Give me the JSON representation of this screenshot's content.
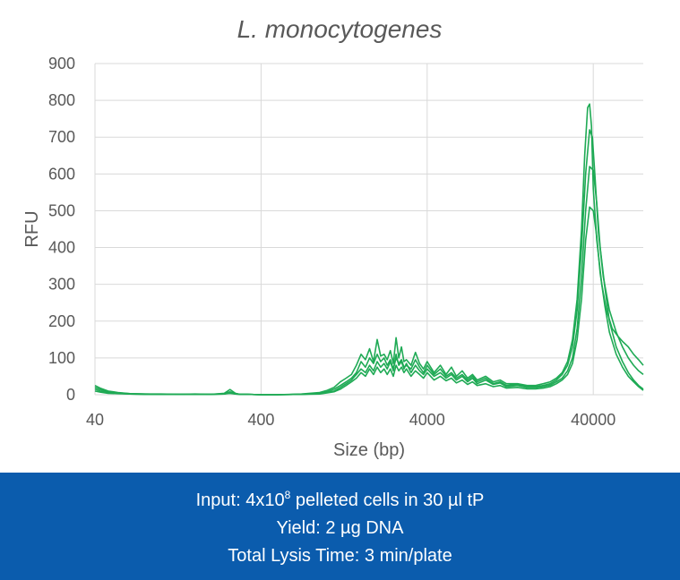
{
  "chart_data": {
    "type": "line",
    "title": "L. monocytogenes",
    "xlabel": "Size (bp)",
    "ylabel": "RFU",
    "x_scale": "log",
    "xlim": [
      40,
      80000
    ],
    "ylim": [
      0,
      900
    ],
    "x_ticks": [
      40,
      400,
      4000,
      40000
    ],
    "x_tick_labels": [
      "40",
      "400",
      "4000",
      "40000"
    ],
    "y_ticks": [
      0,
      100,
      200,
      300,
      400,
      500,
      600,
      700,
      800,
      900
    ],
    "y_tick_labels": [
      "0",
      "100",
      "200",
      "300",
      "400",
      "500",
      "600",
      "700",
      "800",
      "900"
    ],
    "grid": true,
    "legend": "none",
    "line_color": "#1faa55",
    "series": [
      {
        "x": [
          40,
          43,
          48,
          55,
          65,
          80,
          100,
          130,
          160,
          200,
          240,
          260,
          280,
          300,
          330,
          400,
          500,
          700,
          900,
          1000,
          1100,
          1200,
          1300,
          1400,
          1500,
          1600,
          1700,
          1800,
          1900,
          2000,
          2100,
          2200,
          2300,
          2400,
          2500,
          2600,
          2700,
          2800,
          2900,
          3000,
          3200,
          3400,
          3600,
          3800,
          4000,
          4400,
          4800,
          5200,
          5600,
          6000,
          6500,
          7000,
          7500,
          8000,
          9000,
          10000,
          11000,
          12000,
          14000,
          16000,
          18000,
          20000,
          22000,
          24000,
          26000,
          28000,
          30000,
          32000,
          34000,
          35500,
          37000,
          38000,
          39000,
          40000,
          42000,
          45000,
          48000,
          52000,
          56000,
          60000,
          65000,
          70000,
          75000,
          80000
        ],
        "y": [
          25,
          18,
          10,
          6,
          3,
          2,
          2,
          1,
          2,
          1,
          4,
          14,
          4,
          1,
          1,
          0,
          0,
          2,
          6,
          12,
          20,
          35,
          45,
          55,
          80,
          110,
          95,
          125,
          90,
          150,
          105,
          110,
          95,
          120,
          85,
          155,
          100,
          130,
          90,
          95,
          80,
          115,
          85,
          70,
          90,
          60,
          80,
          55,
          75,
          50,
          65,
          45,
          55,
          40,
          50,
          35,
          40,
          30,
          30,
          25,
          25,
          30,
          35,
          45,
          60,
          90,
          150,
          260,
          450,
          650,
          780,
          790,
          730,
          560,
          420,
          300,
          230,
          180,
          160,
          145,
          130,
          110,
          95,
          80
        ]
      },
      {
        "x": [
          40,
          43,
          48,
          55,
          65,
          80,
          100,
          130,
          160,
          200,
          240,
          260,
          280,
          300,
          330,
          400,
          500,
          700,
          900,
          1000,
          1100,
          1200,
          1300,
          1400,
          1500,
          1600,
          1700,
          1800,
          1900,
          2000,
          2100,
          2200,
          2300,
          2400,
          2500,
          2600,
          2700,
          2800,
          2900,
          3000,
          3200,
          3400,
          3600,
          3800,
          4000,
          4400,
          4800,
          5200,
          5600,
          6000,
          6500,
          7000,
          7500,
          8000,
          9000,
          10000,
          11000,
          12000,
          14000,
          16000,
          18000,
          20000,
          22000,
          24000,
          26000,
          28000,
          30000,
          32000,
          34000,
          36000,
          38000,
          39500,
          41000,
          43000,
          46000,
          50000,
          55000,
          60000,
          65000,
          70000,
          75000,
          80000
        ],
        "y": [
          20,
          14,
          8,
          5,
          3,
          2,
          1,
          1,
          1,
          1,
          3,
          8,
          3,
          1,
          1,
          0,
          0,
          1,
          4,
          8,
          15,
          25,
          35,
          45,
          60,
          90,
          75,
          100,
          85,
          110,
          90,
          100,
          80,
          95,
          70,
          100,
          85,
          95,
          75,
          80,
          70,
          95,
          75,
          60,
          80,
          55,
          70,
          50,
          60,
          45,
          55,
          40,
          50,
          35,
          45,
          30,
          35,
          25,
          28,
          22,
          22,
          25,
          30,
          40,
          55,
          80,
          130,
          230,
          400,
          600,
          720,
          700,
          590,
          440,
          320,
          230,
          170,
          130,
          100,
          80,
          65,
          55
        ]
      },
      {
        "x": [
          40,
          43,
          48,
          55,
          65,
          80,
          100,
          130,
          160,
          200,
          240,
          260,
          280,
          300,
          330,
          400,
          500,
          700,
          900,
          1000,
          1100,
          1200,
          1300,
          1400,
          1500,
          1600,
          1700,
          1800,
          1900,
          2000,
          2100,
          2200,
          2300,
          2400,
          2500,
          2600,
          2700,
          2800,
          2900,
          3000,
          3200,
          3400,
          3600,
          3800,
          4000,
          4400,
          4800,
          5200,
          5600,
          6000,
          6500,
          7000,
          7500,
          8000,
          9000,
          10000,
          11000,
          12000,
          14000,
          16000,
          18000,
          20000,
          22000,
          24000,
          26000,
          28000,
          30000,
          32000,
          34000,
          36000,
          38000,
          40000,
          42000,
          44000,
          47000,
          50000,
          55000,
          60000,
          65000,
          70000,
          75000,
          80000
        ],
        "y": [
          15,
          10,
          6,
          4,
          2,
          1,
          1,
          1,
          1,
          1,
          2,
          5,
          2,
          1,
          1,
          0,
          0,
          1,
          3,
          6,
          10,
          20,
          30,
          40,
          55,
          70,
          60,
          80,
          65,
          90,
          75,
          85,
          70,
          90,
          65,
          110,
          80,
          90,
          70,
          85,
          60,
          80,
          65,
          55,
          70,
          50,
          60,
          45,
          55,
          40,
          50,
          35,
          45,
          30,
          40,
          28,
          32,
          22,
          25,
          20,
          20,
          22,
          26,
          35,
          45,
          65,
          100,
          180,
          320,
          500,
          620,
          610,
          520,
          400,
          290,
          200,
          130,
          90,
          60,
          40,
          25,
          15
        ]
      },
      {
        "x": [
          40,
          43,
          48,
          55,
          65,
          80,
          100,
          130,
          160,
          200,
          240,
          260,
          280,
          300,
          330,
          400,
          500,
          700,
          900,
          1000,
          1100,
          1200,
          1300,
          1400,
          1500,
          1600,
          1700,
          1800,
          1900,
          2000,
          2100,
          2200,
          2300,
          2400,
          2500,
          2600,
          2700,
          2800,
          2900,
          3000,
          3200,
          3400,
          3600,
          3800,
          4000,
          4400,
          4800,
          5200,
          5600,
          6000,
          6500,
          7000,
          7500,
          8000,
          9000,
          10000,
          11000,
          12000,
          14000,
          16000,
          18000,
          20000,
          22000,
          24000,
          26000,
          28000,
          30000,
          32000,
          34000,
          36000,
          38000,
          40000,
          42000,
          44000,
          47000,
          50000,
          55000,
          60000,
          65000,
          70000,
          75000,
          80000
        ],
        "y": [
          10,
          7,
          4,
          3,
          2,
          1,
          1,
          1,
          1,
          1,
          2,
          4,
          2,
          1,
          1,
          0,
          0,
          1,
          2,
          5,
          8,
          15,
          25,
          35,
          45,
          60,
          50,
          70,
          55,
          75,
          60,
          70,
          55,
          70,
          50,
          80,
          65,
          75,
          60,
          70,
          50,
          65,
          55,
          45,
          60,
          40,
          50,
          38,
          45,
          32,
          40,
          28,
          35,
          25,
          30,
          22,
          25,
          18,
          20,
          16,
          16,
          18,
          22,
          30,
          40,
          55,
          85,
          150,
          260,
          420,
          510,
          500,
          430,
          330,
          240,
          170,
          110,
          75,
          50,
          35,
          22,
          12
        ]
      }
    ]
  },
  "caption": {
    "line1_pre": "Input: 4x10",
    "line1_sup": "8",
    "line1_post": " pelleted cells in 30 µl tP",
    "line2": "Yield:  2 µg DNA",
    "line3": "Total  Lysis Time: 3 min/plate"
  }
}
